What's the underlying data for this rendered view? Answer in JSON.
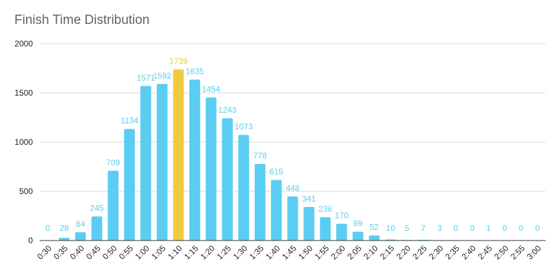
{
  "chart_data": {
    "type": "bar",
    "title": "Finish Time Distribution",
    "xlabel": "",
    "ylabel": "",
    "categories": [
      "0:30",
      "0:35",
      "0:40",
      "0:45",
      "0:50",
      "0:55",
      "1:00",
      "1:05",
      "1:10",
      "1:15",
      "1:20",
      "1:25",
      "1:30",
      "1:35",
      "1:40",
      "1:45",
      "1:50",
      "1:55",
      "2:00",
      "2:05",
      "2:10",
      "2:15",
      "2:20",
      "2:25",
      "2:30",
      "2:35",
      "2:40",
      "2:45",
      "2:50",
      "2:55",
      "3:00"
    ],
    "values": [
      0,
      28,
      84,
      245,
      709,
      1134,
      1571,
      1592,
      1739,
      1635,
      1454,
      1243,
      1073,
      778,
      615,
      448,
      341,
      236,
      170,
      89,
      52,
      10,
      5,
      7,
      3,
      0,
      0,
      1,
      0,
      0,
      0
    ],
    "data_labels": [
      "0",
      "28",
      "84",
      "245",
      "709",
      "1134",
      "1571",
      "1592",
      "1739",
      "1635",
      "1454",
      "1243",
      "1073",
      "778",
      "615",
      "448",
      "341",
      "236",
      "170",
      "89",
      "52",
      "10",
      "5",
      "7",
      "3",
      "0",
      "0",
      "1",
      "0",
      "0",
      "0"
    ],
    "y_ticks": [
      "0",
      "500",
      "1000",
      "1500",
      "2000"
    ],
    "ylim": [
      0,
      2000
    ],
    "grid": true,
    "highlight_category": "1:10",
    "colors": {
      "bar": "#5bcdf2",
      "highlight": "#f5c842",
      "label": "#5bcdf2",
      "highlight_label": "#f5c842"
    }
  }
}
